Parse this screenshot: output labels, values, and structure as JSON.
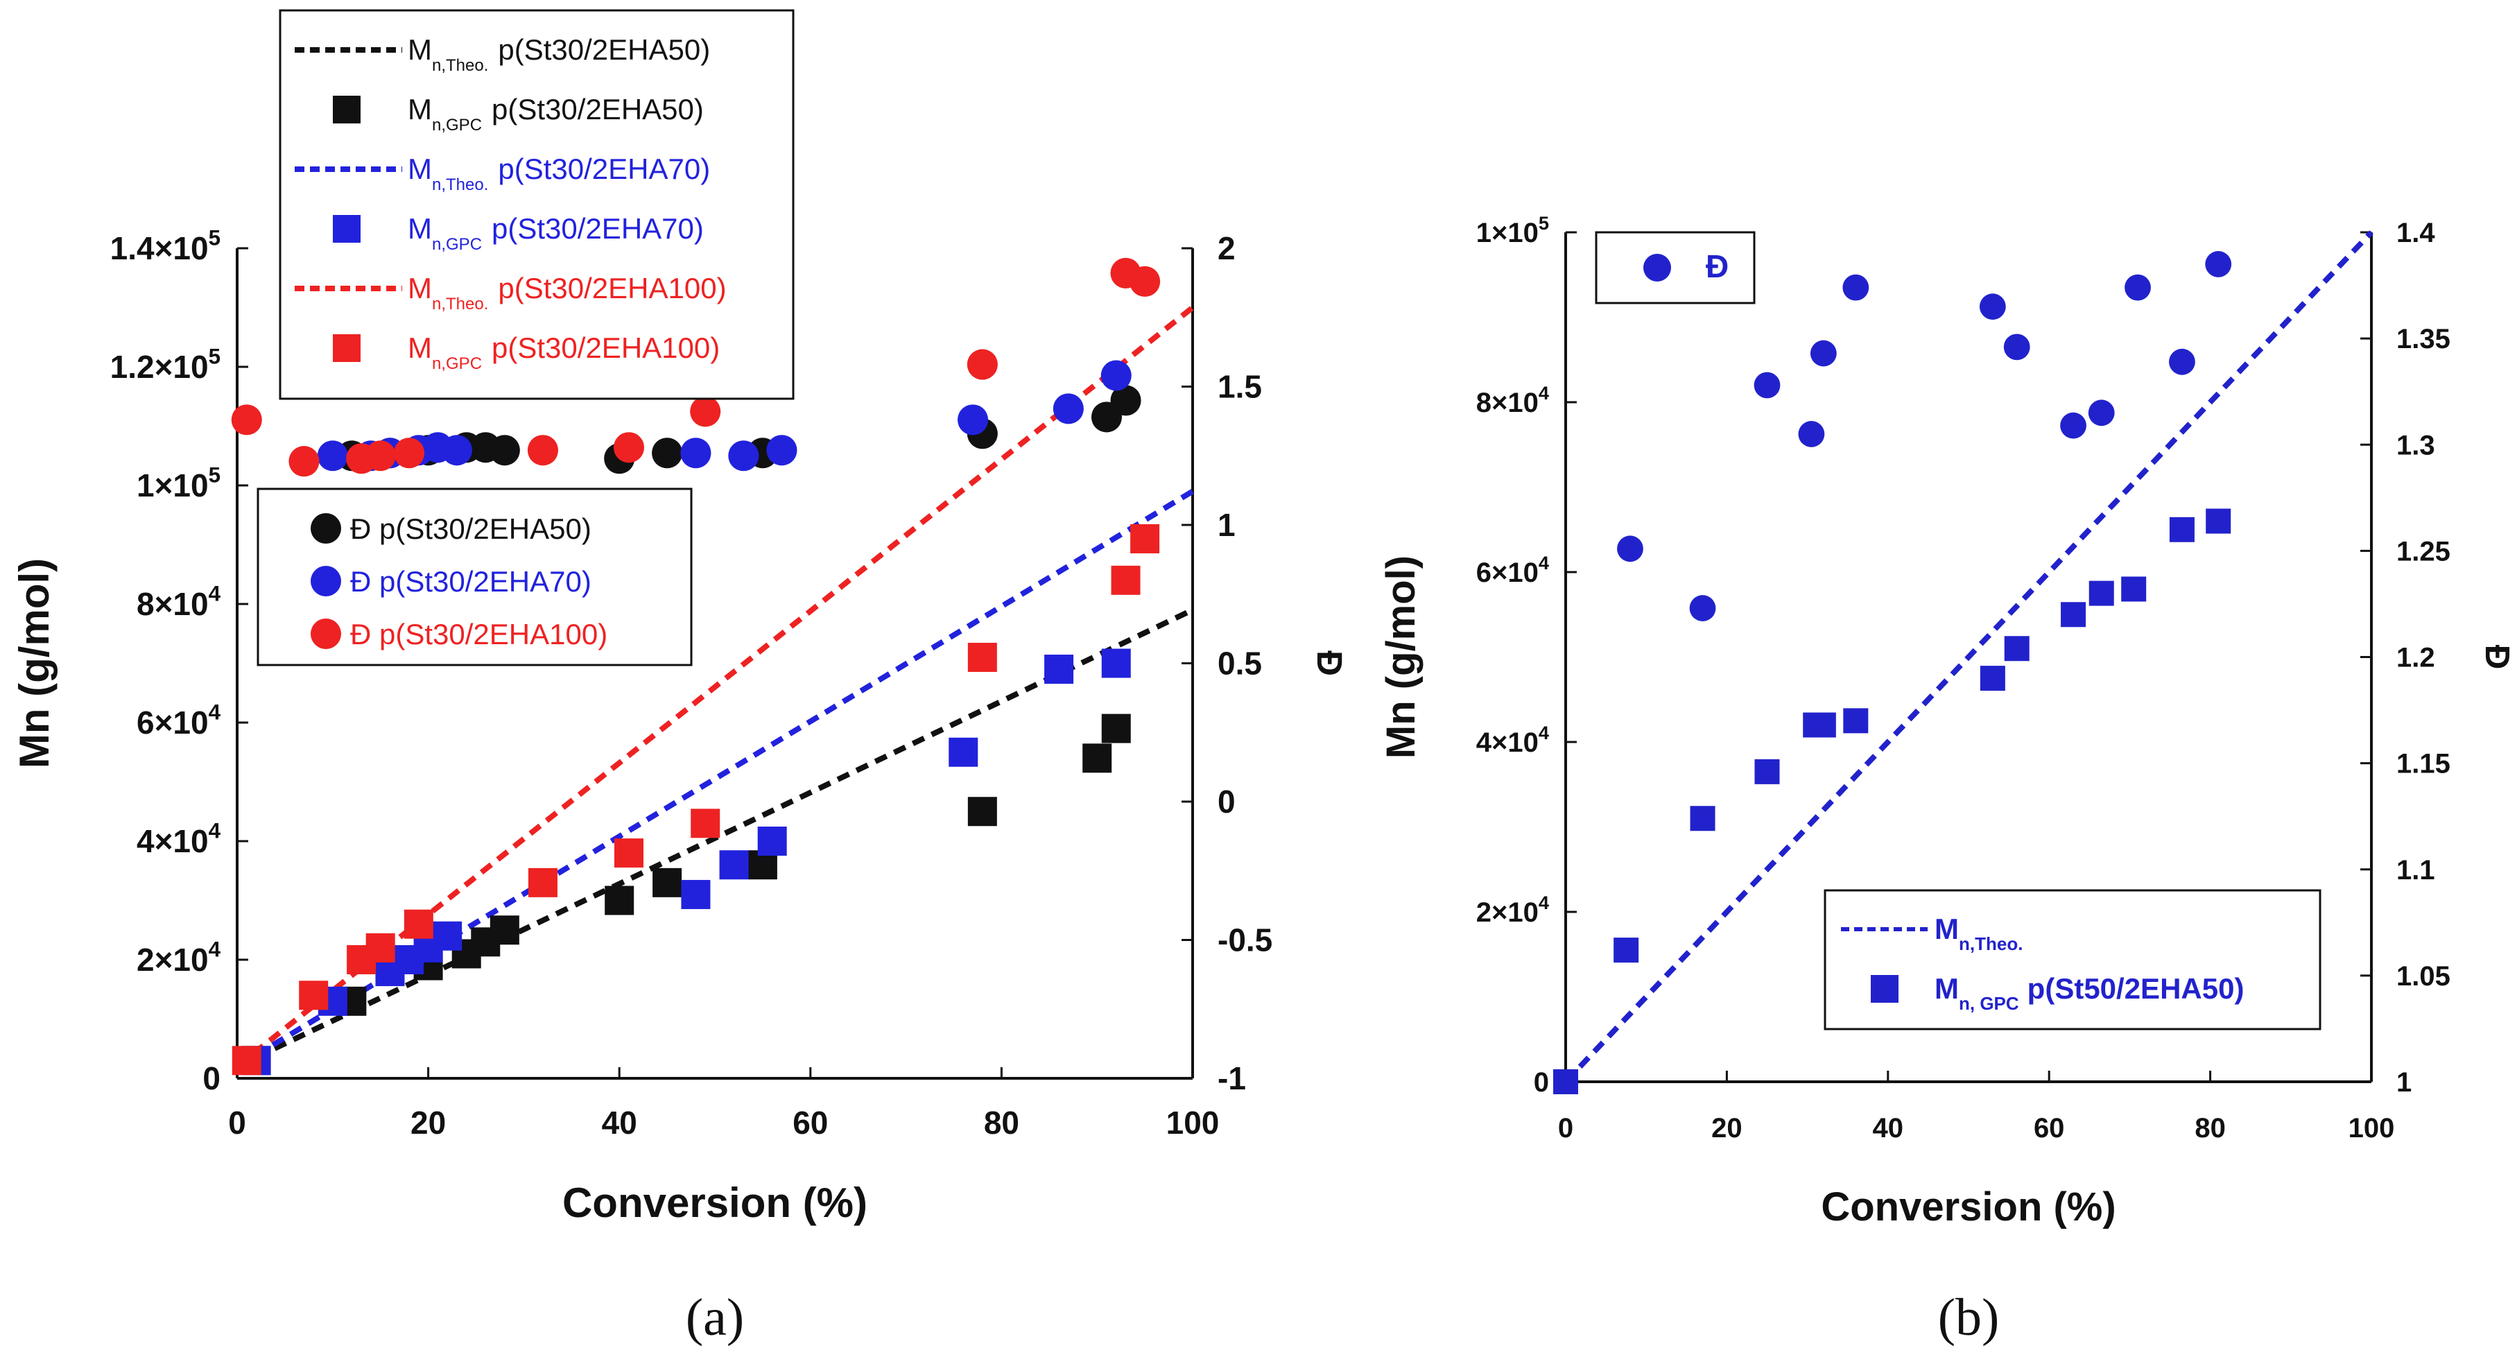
{
  "chart_data": [
    {
      "type": "scatter",
      "panel_label": "(a)",
      "xlabel": "Conversion (%)",
      "ylabel": "Mn (g/mol)",
      "y2label": "Đ",
      "xlim": [
        0,
        100
      ],
      "ylim": [
        0,
        140000
      ],
      "y2lim": [
        -1,
        2
      ],
      "x_ticks": [
        "0",
        "20",
        "40",
        "60",
        "80",
        "100"
      ],
      "y_ticks": [
        {
          "mant": "0",
          "exp": ""
        },
        {
          "mant": "2×10",
          "exp": "4"
        },
        {
          "mant": "4×10",
          "exp": "4"
        },
        {
          "mant": "6×10",
          "exp": "4"
        },
        {
          "mant": "8×10",
          "exp": "4"
        },
        {
          "mant": "1×10",
          "exp": "5"
        },
        {
          "mant": "1.2×10",
          "exp": "5"
        },
        {
          "mant": "1.4×10",
          "exp": "5"
        }
      ],
      "y2_ticks": [
        "-1",
        "-0.5",
        "0",
        "0.5",
        "1",
        "1.5",
        "2"
      ],
      "colors": {
        "st2ehaa50": "#111111",
        "st2ehaa70": "#2222dd",
        "st2ehaa100": "#ee2222"
      },
      "legend_mn": [
        {
          "kind": "line",
          "main": "M",
          "sub": "n,Theo.",
          "label": "p(St30/2EHA50)",
          "color": "#111111"
        },
        {
          "kind": "square",
          "main": "M",
          "sub": "n,GPC",
          "label": "p(St30/2EHA50)",
          "color": "#111111"
        },
        {
          "kind": "line",
          "main": "M",
          "sub": "n,Theo.",
          "label": "p(St30/2EHA70)",
          "color": "#2222dd"
        },
        {
          "kind": "square",
          "main": "M",
          "sub": "n,GPC",
          "label": "p(St30/2EHA70)",
          "color": "#2222dd"
        },
        {
          "kind": "line",
          "main": "M",
          "sub": "n,Theo.",
          "label": "p(St30/2EHA100)",
          "color": "#ee2222"
        },
        {
          "kind": "square",
          "main": "M",
          "sub": "n,GPC",
          "label": "p(St30/2EHA100)",
          "color": "#ee2222"
        }
      ],
      "legend_d": [
        {
          "kind": "circle",
          "text": "Đ p(St30/2EHA50)",
          "color": "#111111"
        },
        {
          "kind": "circle",
          "text": "Đ p(St30/2EHA70)",
          "color": "#2222dd"
        },
        {
          "kind": "circle",
          "text": "Đ p(St30/2EHA100)",
          "color": "#ee2222"
        }
      ],
      "series": [
        {
          "name": "Mn,Theo. p(St30/2EHA50)",
          "kind": "line",
          "color": "#111111",
          "x": [
            0,
            100
          ],
          "y": [
            2000,
            79000
          ]
        },
        {
          "name": "Mn,Theo. p(St30/2EHA70)",
          "kind": "line",
          "color": "#2222dd",
          "x": [
            0,
            100
          ],
          "y": [
            2000,
            99000
          ]
        },
        {
          "name": "Mn,Theo. p(St30/2EHA100)",
          "kind": "line",
          "color": "#ee2222",
          "x": [
            0,
            100
          ],
          "y": [
            2000,
            130000
          ]
        },
        {
          "name": "Mn,GPC p(St30/2EHA50)",
          "kind": "square",
          "color": "#111111",
          "x": [
            2,
            12,
            20,
            24,
            26,
            28,
            40,
            45,
            55,
            78,
            90,
            92
          ],
          "y": [
            3000,
            13000,
            19000,
            21000,
            23000,
            25000,
            30000,
            33000,
            36000,
            45000,
            54000,
            59000
          ]
        },
        {
          "name": "Mn,GPC p(St30/2EHA70)",
          "kind": "square",
          "color": "#2222dd",
          "x": [
            2,
            10,
            16,
            18,
            20,
            22,
            48,
            52,
            56,
            76,
            86,
            92
          ],
          "y": [
            3000,
            13000,
            18000,
            20000,
            22000,
            24000,
            31000,
            36000,
            40000,
            55000,
            69000,
            70000
          ]
        },
        {
          "name": "Mn,GPC p(St30/2EHA100)",
          "kind": "square",
          "color": "#ee2222",
          "x": [
            1,
            8,
            13,
            15,
            19,
            32,
            41,
            49,
            78,
            93,
            95
          ],
          "y": [
            3000,
            14000,
            20000,
            22000,
            26000,
            33000,
            38000,
            43000,
            71000,
            84000,
            91000
          ]
        },
        {
          "name": "Đ p(St30/2EHA50)",
          "kind": "circle",
          "axis": "y2",
          "color": "#111111",
          "x": [
            12,
            16,
            20,
            24,
            26,
            28,
            40,
            45,
            55,
            78,
            91,
            93
          ],
          "y": [
            1.25,
            1.26,
            1.27,
            1.28,
            1.28,
            1.27,
            1.24,
            1.26,
            1.26,
            1.33,
            1.39,
            1.45
          ]
        },
        {
          "name": "Đ p(St30/2EHA70)",
          "kind": "circle",
          "axis": "y2",
          "color": "#2222dd",
          "x": [
            10,
            14,
            16,
            19,
            21,
            23,
            48,
            53,
            57,
            77,
            87,
            92
          ],
          "y": [
            1.25,
            1.25,
            1.26,
            1.27,
            1.28,
            1.27,
            1.26,
            1.25,
            1.27,
            1.38,
            1.42,
            1.54
          ]
        },
        {
          "name": "Đ p(St30/2EHA100)",
          "kind": "circle",
          "axis": "y2",
          "color": "#ee2222",
          "x": [
            1,
            7,
            13,
            15,
            18,
            32,
            41,
            49,
            78,
            93,
            95
          ],
          "y": [
            1.38,
            1.23,
            1.24,
            1.25,
            1.26,
            1.27,
            1.28,
            1.41,
            1.58,
            1.91,
            1.88
          ]
        }
      ]
    },
    {
      "type": "scatter",
      "panel_label": "(b)",
      "xlabel": "Conversion (%)",
      "ylabel": "Mn (g/mol)",
      "y2label": "Đ",
      "xlim": [
        0,
        100
      ],
      "ylim": [
        0,
        100000
      ],
      "y2lim": [
        1,
        1.4
      ],
      "x_ticks": [
        "0",
        "20",
        "40",
        "60",
        "80",
        "100"
      ],
      "y_ticks": [
        {
          "mant": "0",
          "exp": ""
        },
        {
          "mant": "2×10",
          "exp": "4"
        },
        {
          "mant": "4×10",
          "exp": "4"
        },
        {
          "mant": "6×10",
          "exp": "4"
        },
        {
          "mant": "8×10",
          "exp": "4"
        },
        {
          "mant": "1×10",
          "exp": "5"
        }
      ],
      "y2_ticks": [
        "1",
        "1.05",
        "1.1",
        "1.15",
        "1.2",
        "1.25",
        "1.3",
        "1.35",
        "1.4"
      ],
      "colors": {
        "series": "#2222cc"
      },
      "legend_d": {
        "text": "Đ"
      },
      "legend_mn": [
        {
          "kind": "line",
          "main": "M",
          "sub": "n,Theo.",
          "label": ""
        },
        {
          "kind": "square",
          "main": "M",
          "sub": "n, GPC",
          "label": "p(St50/2EHA50)"
        }
      ],
      "series": [
        {
          "name": "Mn,Theo.",
          "kind": "line",
          "color": "#2222cc",
          "x": [
            0,
            100
          ],
          "y": [
            0,
            100000
          ]
        },
        {
          "name": "Mn,GPC p(St50/2EHA50)",
          "kind": "square",
          "color": "#2222cc",
          "x": [
            0,
            7.5,
            17,
            25,
            31,
            32,
            36,
            53,
            56,
            63,
            66.5,
            70.5,
            76.5,
            81
          ],
          "y": [
            0,
            15500,
            31000,
            36500,
            42000,
            42000,
            42500,
            47500,
            51000,
            55000,
            57500,
            58000,
            65000,
            66000
          ]
        },
        {
          "name": "Đ",
          "kind": "circle",
          "axis": "y2",
          "color": "#2222cc",
          "x": [
            8,
            17,
            25,
            30.5,
            32,
            36,
            53,
            56,
            63,
            66.5,
            71,
            76.5,
            81
          ],
          "y": [
            1.251,
            1.223,
            1.328,
            1.305,
            1.343,
            1.374,
            1.365,
            1.346,
            1.309,
            1.315,
            1.374,
            1.339,
            1.385
          ]
        }
      ]
    }
  ]
}
